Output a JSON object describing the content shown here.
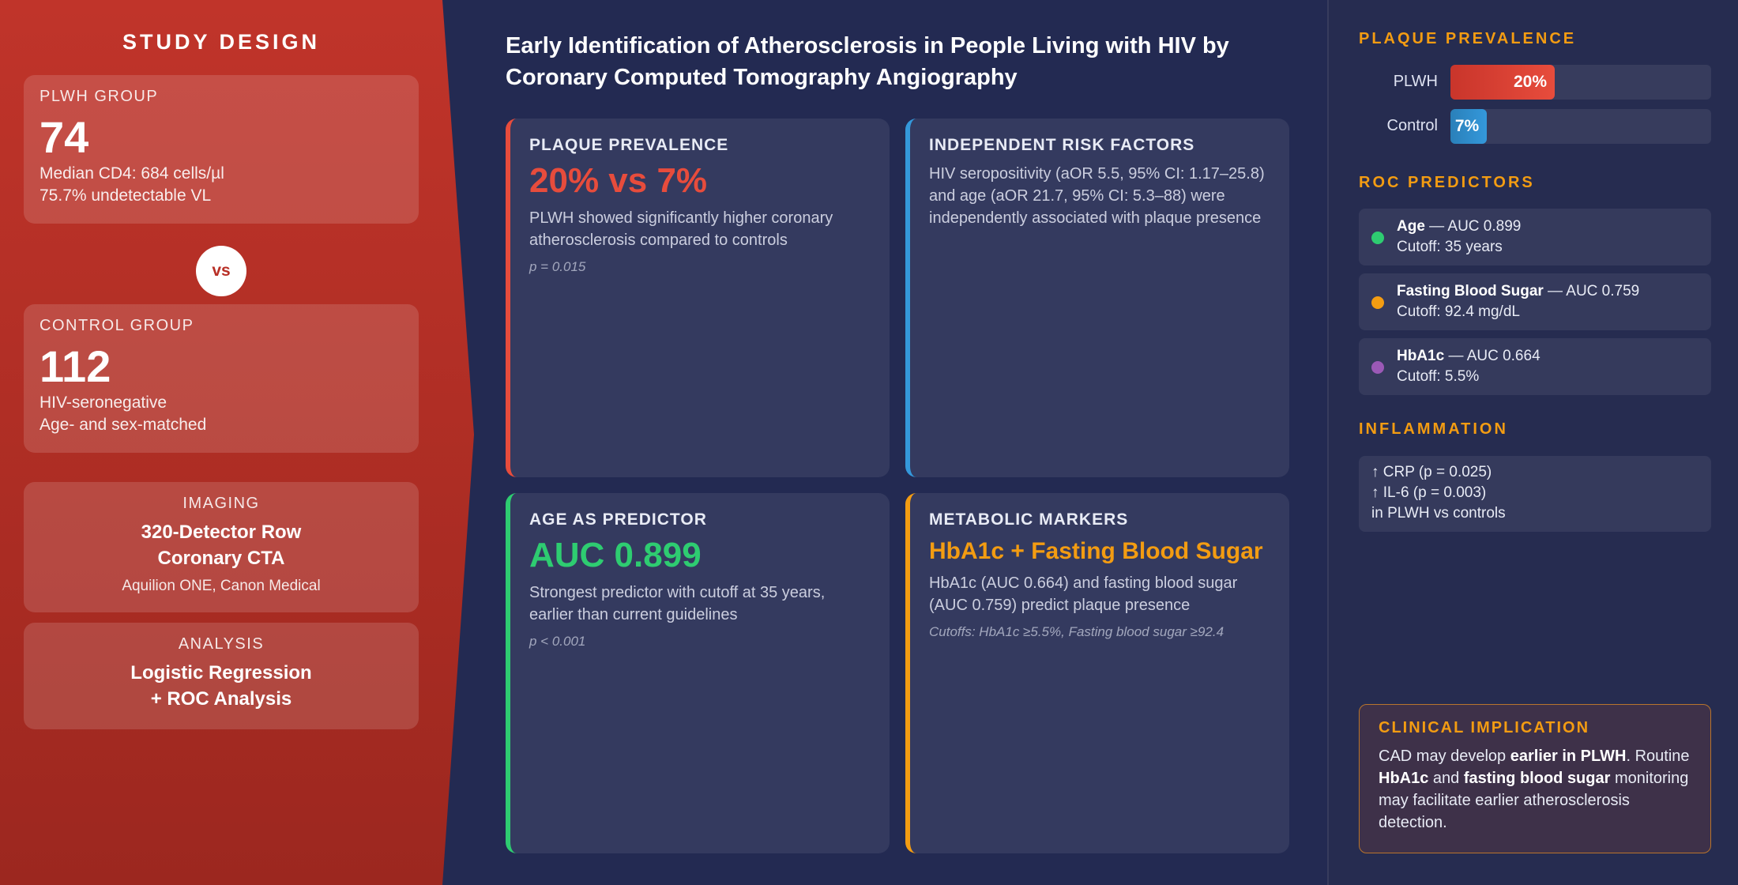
{
  "study_design": {
    "title": "STUDY DESIGN",
    "plwh": {
      "label": "PLWH GROUP",
      "count": "74",
      "line1": "Median CD4: 684 cells/µl",
      "line2": "75.7% undetectable VL"
    },
    "vs": "vs",
    "control": {
      "label": "CONTROL GROUP",
      "count": "112",
      "line1": "HIV-seronegative",
      "line2": "Age- and sex-matched"
    },
    "imaging": {
      "label": "IMAGING",
      "line1": "320-Detector Row",
      "line2": "Coronary CTA",
      "device": "Aquilion ONE, Canon Medical"
    },
    "analysis": {
      "label": "ANALYSIS",
      "line1": "Logistic Regression",
      "line2": "+ ROC Analysis"
    }
  },
  "main": {
    "title_line1": "Early Identification of Atherosclerosis in People Living with HIV by",
    "title_line2": "Coronary Computed Tomography Angiography",
    "findings": [
      {
        "title": "PLAQUE PREVALENCE",
        "headline": "20% vs 7%",
        "color": "#e74c3c",
        "desc1": "PLWH showed significantly higher coronary",
        "desc2": "atherosclerosis compared to controls",
        "note": "p = 0.015"
      },
      {
        "title": "INDEPENDENT RISK FACTORS",
        "color": "#3498db",
        "desc1": "HIV seropositivity (aOR 5.5, 95% CI: 1.17–25.8)",
        "desc2": "and age (aOR 21.7, 95% CI: 5.3–88) were",
        "desc3": "independently associated with plaque presence"
      },
      {
        "title": "AGE AS PREDICTOR",
        "headline": "AUC 0.899",
        "color": "#2ecc71",
        "desc1": "Strongest predictor with cutoff at 35 years,",
        "desc2": "earlier than current guidelines",
        "note": "p < 0.001"
      },
      {
        "title": "METABOLIC MARKERS",
        "headline": "HbA1c + Fasting Blood Sugar",
        "color": "#f39c12",
        "desc1": "HbA1c (AUC 0.664) and fasting blood sugar",
        "desc2": "(AUC 0.759) predict plaque presence",
        "note": "Cutoffs: HbA1c ≥5.5%, Fasting blood sugar ≥92.4"
      }
    ]
  },
  "sidebar": {
    "prevalence": {
      "title": "PLAQUE PREVALENCE",
      "bars": [
        {
          "label": "PLWH",
          "value_label": "20%",
          "fraction": 0.2,
          "color": "#e74c3c"
        },
        {
          "label": "Control",
          "value_label": "7%",
          "fraction": 0.07,
          "color": "#3498db"
        }
      ]
    },
    "roc": {
      "title": "ROC PREDICTORS",
      "items": [
        {
          "name": "Age",
          "auc": " — AUC 0.899",
          "cutoff": "Cutoff: 35 years",
          "color": "#2ecc71"
        },
        {
          "name": "Fasting Blood Sugar",
          "auc": " — AUC 0.759",
          "cutoff": "Cutoff: 92.4 mg/dL",
          "color": "#f39c12"
        },
        {
          "name": "HbA1c",
          "auc": " — AUC 0.664",
          "cutoff": "Cutoff: 5.5%",
          "color": "#9b59b6"
        }
      ]
    },
    "inflammation": {
      "title": "INFLAMMATION",
      "line1": "↑ CRP (p = 0.025)",
      "line2": "↑ IL-6 (p = 0.003)",
      "line3": "in PLWH vs controls"
    },
    "clinical": {
      "title": "CLINICAL IMPLICATION",
      "t1": "CAD may develop ",
      "b1": "earlier in PLWH",
      "t2": ". Routine ",
      "b2": "HbA1c",
      "t3": " and ",
      "b3": "fasting blood sugar",
      "t4": " monitoring may facilitate earlier atherosclerosis detection."
    }
  }
}
